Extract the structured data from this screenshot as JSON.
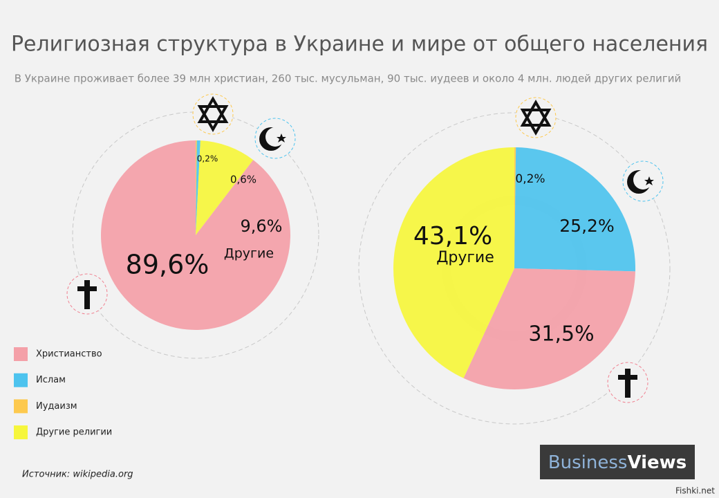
{
  "title": "Религиозная структура в Украине и мире от общего населения",
  "subtitle": "В Украине проживает более  39 млн христиан, 260 тыс. мусульман, 90 тыс. иудеев и около  4 млн. людей других религий",
  "legend": [
    {
      "name": "Христианство",
      "color": "#f4a0a8"
    },
    {
      "name": "Ислам",
      "color": "#4dc3ee"
    },
    {
      "name": "Иудаизм",
      "color": "#fdc94e"
    },
    {
      "name": "Другие религии",
      "color": "#f6f63c"
    }
  ],
  "source": "Источник: wikipedia.org",
  "brand": {
    "part1": "Business",
    "part2": "Views"
  },
  "watermark": "Fishki.net",
  "chart_data": [
    {
      "type": "pie",
      "values": [
        0.2,
        0.6,
        9.6,
        89.6
      ],
      "value_labels": [
        "0,2%",
        "0,6%",
        "9,6%",
        "89,6%"
      ],
      "colors": [
        "#fdc94e",
        "#4dc3ee",
        "#f6f63c",
        "#f4a0a8"
      ],
      "annotation": "Другие"
    },
    {
      "type": "pie",
      "values": [
        0.2,
        25.2,
        31.5,
        43.1
      ],
      "value_labels": [
        "0,2%",
        "25,2%",
        "31,5%",
        "43,1%"
      ],
      "colors": [
        "#fdc94e",
        "#4dc3ee",
        "#f4a0a8",
        "#f6f63c"
      ],
      "annotation": "Другие"
    }
  ]
}
